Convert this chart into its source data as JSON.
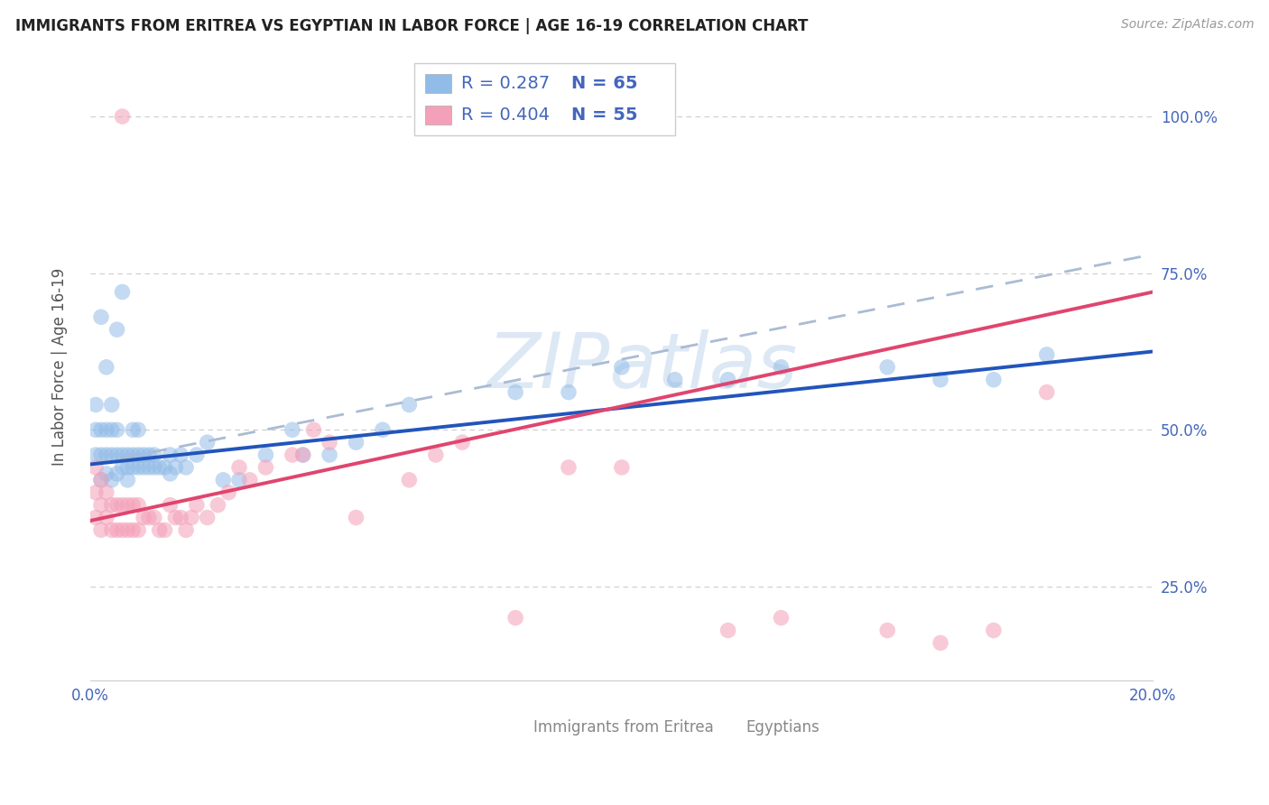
{
  "title": "IMMIGRANTS FROM ERITREA VS EGYPTIAN IN LABOR FORCE | AGE 16-19 CORRELATION CHART",
  "source": "Source: ZipAtlas.com",
  "ylabel": "In Labor Force | Age 16-19",
  "xlim": [
    0.0,
    0.2
  ],
  "ylim": [
    0.1,
    1.1
  ],
  "yticks": [
    0.25,
    0.5,
    0.75,
    1.0
  ],
  "ytick_labels": [
    "25.0%",
    "50.0%",
    "75.0%",
    "100.0%"
  ],
  "xticks": [
    0.0,
    0.05,
    0.1,
    0.15,
    0.2
  ],
  "xtick_labels": [
    "0.0%",
    "",
    "",
    "",
    "20.0%"
  ],
  "eritrea_color": "#92bce8",
  "egypt_color": "#f4a0b8",
  "eritrea_line_color": "#2255bb",
  "egypt_line_color": "#e0456e",
  "dash_line_color": "#aabbd4",
  "grid_color": "#cccccc",
  "axis_tick_color": "#4466bb",
  "legend_text_color": "#333333",
  "legend_r1": "R = 0.287",
  "legend_n1": "N = 65",
  "legend_r2": "R = 0.404",
  "legend_n2": "N = 55",
  "label1": "Immigrants from Eritrea",
  "label2": "Egyptians",
  "watermark": "ZIPatlas",
  "eritrea_line_x0": 0.0,
  "eritrea_line_y0": 0.445,
  "eritrea_line_x1": 0.2,
  "eritrea_line_y1": 0.625,
  "egypt_line_x0": 0.0,
  "egypt_line_y0": 0.355,
  "egypt_line_x1": 0.2,
  "egypt_line_y1": 0.72,
  "dash_line_x0": 0.0,
  "dash_line_y0": 0.445,
  "dash_line_x1": 0.2,
  "dash_line_y1": 0.78,
  "eritrea_pts_x": [
    0.001,
    0.001,
    0.001,
    0.002,
    0.002,
    0.002,
    0.002,
    0.003,
    0.003,
    0.003,
    0.003,
    0.004,
    0.004,
    0.004,
    0.004,
    0.005,
    0.005,
    0.005,
    0.005,
    0.006,
    0.006,
    0.006,
    0.007,
    0.007,
    0.007,
    0.008,
    0.008,
    0.008,
    0.009,
    0.009,
    0.009,
    0.01,
    0.01,
    0.011,
    0.011,
    0.012,
    0.012,
    0.013,
    0.014,
    0.015,
    0.015,
    0.016,
    0.017,
    0.018,
    0.02,
    0.022,
    0.025,
    0.028,
    0.033,
    0.038,
    0.04,
    0.045,
    0.05,
    0.055,
    0.06,
    0.08,
    0.09,
    0.1,
    0.11,
    0.12,
    0.13,
    0.15,
    0.16,
    0.17,
    0.18
  ],
  "eritrea_pts_y": [
    0.46,
    0.5,
    0.54,
    0.42,
    0.46,
    0.5,
    0.68,
    0.43,
    0.46,
    0.5,
    0.6,
    0.42,
    0.46,
    0.5,
    0.54,
    0.43,
    0.46,
    0.5,
    0.66,
    0.44,
    0.46,
    0.72,
    0.42,
    0.44,
    0.46,
    0.44,
    0.46,
    0.5,
    0.44,
    0.46,
    0.5,
    0.44,
    0.46,
    0.44,
    0.46,
    0.44,
    0.46,
    0.44,
    0.44,
    0.43,
    0.46,
    0.44,
    0.46,
    0.44,
    0.46,
    0.48,
    0.42,
    0.42,
    0.46,
    0.5,
    0.46,
    0.46,
    0.48,
    0.5,
    0.54,
    0.56,
    0.56,
    0.6,
    0.58,
    0.58,
    0.6,
    0.6,
    0.58,
    0.58,
    0.62
  ],
  "egypt_pts_x": [
    0.001,
    0.001,
    0.001,
    0.002,
    0.002,
    0.002,
    0.003,
    0.003,
    0.004,
    0.004,
    0.005,
    0.005,
    0.006,
    0.006,
    0.007,
    0.007,
    0.008,
    0.008,
    0.009,
    0.009,
    0.01,
    0.011,
    0.012,
    0.013,
    0.014,
    0.015,
    0.016,
    0.017,
    0.018,
    0.019,
    0.02,
    0.022,
    0.024,
    0.026,
    0.028,
    0.03,
    0.033,
    0.038,
    0.04,
    0.042,
    0.045,
    0.05,
    0.06,
    0.065,
    0.07,
    0.08,
    0.09,
    0.1,
    0.12,
    0.13,
    0.15,
    0.16,
    0.17,
    0.18,
    0.006
  ],
  "egypt_pts_y": [
    0.36,
    0.4,
    0.44,
    0.34,
    0.38,
    0.42,
    0.36,
    0.4,
    0.34,
    0.38,
    0.34,
    0.38,
    0.34,
    0.38,
    0.34,
    0.38,
    0.34,
    0.38,
    0.34,
    0.38,
    0.36,
    0.36,
    0.36,
    0.34,
    0.34,
    0.38,
    0.36,
    0.36,
    0.34,
    0.36,
    0.38,
    0.36,
    0.38,
    0.4,
    0.44,
    0.42,
    0.44,
    0.46,
    0.46,
    0.5,
    0.48,
    0.36,
    0.42,
    0.46,
    0.48,
    0.2,
    0.44,
    0.44,
    0.18,
    0.2,
    0.18,
    0.16,
    0.18,
    0.56,
    1.0
  ]
}
